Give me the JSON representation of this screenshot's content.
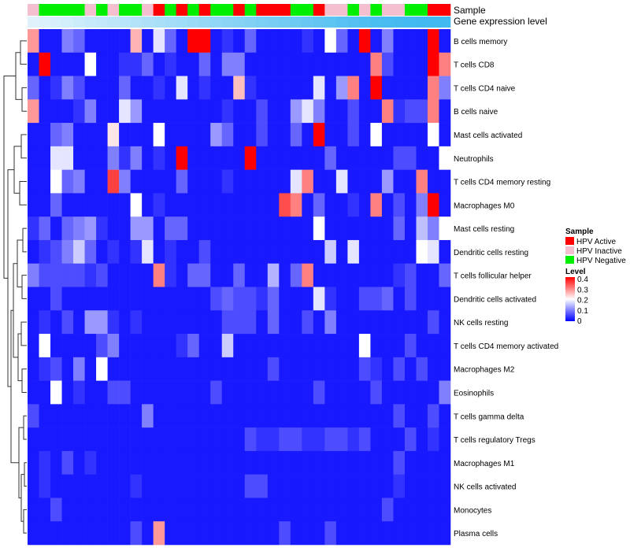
{
  "chart_data": {
    "type": "heatmap",
    "annotation_labels": {
      "sample": "Sample",
      "gene_expression": "Gene expression level"
    },
    "sample_legend": {
      "title": "Sample",
      "entries": [
        {
          "label": "HPV Active",
          "color": "#ff0000"
        },
        {
          "label": "HPV Inactive",
          "color": "#f4bfcf"
        },
        {
          "label": "HPV Negative",
          "color": "#00ee00"
        }
      ]
    },
    "level_legend": {
      "title": "Level",
      "ticks": [
        "0.4",
        "0.3",
        "0.2",
        "0.1",
        "0"
      ],
      "range": [
        0,
        0.4
      ],
      "colors": [
        "#0000ff",
        "#ffffff",
        "#ff0000"
      ]
    },
    "sample_groups": [
      "I",
      "N",
      "N",
      "N",
      "N",
      "I",
      "N",
      "I",
      "N",
      "N",
      "I",
      "A",
      "N",
      "A",
      "N",
      "A",
      "N",
      "N",
      "A",
      "N",
      "A",
      "A",
      "A",
      "N",
      "N",
      "A",
      "I",
      "I",
      "N",
      "I",
      "N",
      "I",
      "I",
      "N",
      "N",
      "A",
      "A"
    ],
    "gene_expression_levels": [
      0.05,
      0.08,
      0.11,
      0.14,
      0.17,
      0.2,
      0.23,
      0.26,
      0.29,
      0.32,
      0.35,
      0.38,
      0.41,
      0.44,
      0.47,
      0.5,
      0.53,
      0.56,
      0.59,
      0.62,
      0.65,
      0.68,
      0.71,
      0.74,
      0.77,
      0.8,
      0.83,
      0.86,
      0.89,
      0.92,
      0.95,
      0.97,
      0.98,
      0.99,
      1.0,
      1.0,
      1.0
    ],
    "rows": [
      "B cells memory",
      "T cells CD8",
      "T cells CD4 naive",
      "B cells naive",
      "Mast cells activated",
      "Neutrophils",
      "T cells CD4 memory resting",
      "Macrophages M0",
      "Mast cells resting",
      "Dendritic cells resting",
      "T cells follicular helper",
      "Dendritic cells activated",
      "NK cells resting",
      "T cells CD4 memory activated",
      "Macrophages M2",
      "Eosinophils",
      "T cells gamma delta",
      "T cells regulatory  Tregs",
      "Macrophages M1",
      "NK cells activated",
      "Monocytes",
      "Plasma cells"
    ],
    "values": [
      [
        0.28,
        0.02,
        0.02,
        0.1,
        0.08,
        0.02,
        0.02,
        0.02,
        0.02,
        0.26,
        0.02,
        0.18,
        0.08,
        0.02,
        0.4,
        0.4,
        0.02,
        0.04,
        0.02,
        0.08,
        0.02,
        0.02,
        0.02,
        0.02,
        0.04,
        0.02,
        0.2,
        0.08,
        0.02,
        0.45,
        0.02,
        0.1,
        0.02,
        0.02,
        0.02,
        0.45,
        0.02
      ],
      [
        0.02,
        0.4,
        0.02,
        0.02,
        0.02,
        0.2,
        0.02,
        0.02,
        0.04,
        0.04,
        0.08,
        0.02,
        0.04,
        0.02,
        0.02,
        0.08,
        0.02,
        0.1,
        0.1,
        0.02,
        0.02,
        0.02,
        0.02,
        0.02,
        0.02,
        0.02,
        0.02,
        0.02,
        0.02,
        0.02,
        0.3,
        0.06,
        0.02,
        0.02,
        0.02,
        0.4,
        0.3
      ],
      [
        0.08,
        0.02,
        0.04,
        0.1,
        0.06,
        0.02,
        0.02,
        0.02,
        0.08,
        0.02,
        0.02,
        0.04,
        0.02,
        0.18,
        0.02,
        0.04,
        0.02,
        0.02,
        0.25,
        0.04,
        0.02,
        0.02,
        0.02,
        0.02,
        0.02,
        0.18,
        0.02,
        0.12,
        0.3,
        0.02,
        0.45,
        0.02,
        0.02,
        0.02,
        0.02,
        0.3,
        0.1
      ],
      [
        0.28,
        0.02,
        0.02,
        0.02,
        0.04,
        0.1,
        0.02,
        0.02,
        0.18,
        0.12,
        0.02,
        0.02,
        0.02,
        0.02,
        0.02,
        0.02,
        0.02,
        0.04,
        0.02,
        0.02,
        0.06,
        0.02,
        0.02,
        0.12,
        0.18,
        0.1,
        0.02,
        0.02,
        0.06,
        0.02,
        0.02,
        0.3,
        0.04,
        0.06,
        0.06,
        0.3,
        0.02
      ],
      [
        0.02,
        0.02,
        0.08,
        0.1,
        0.02,
        0.02,
        0.02,
        0.22,
        0.02,
        0.02,
        0.02,
        0.2,
        0.02,
        0.02,
        0.02,
        0.02,
        0.12,
        0.08,
        0.02,
        0.02,
        0.06,
        0.02,
        0.02,
        0.08,
        0.02,
        0.45,
        0.02,
        0.02,
        0.06,
        0.02,
        0.2,
        0.02,
        0.02,
        0.02,
        0.02,
        0.2,
        0.02
      ],
      [
        0.02,
        0.02,
        0.18,
        0.18,
        0.02,
        0.02,
        0.02,
        0.1,
        0.04,
        0.1,
        0.02,
        0.04,
        0.02,
        0.45,
        0.02,
        0.02,
        0.02,
        0.02,
        0.02,
        0.45,
        0.02,
        0.02,
        0.02,
        0.02,
        0.02,
        0.02,
        0.08,
        0.02,
        0.02,
        0.02,
        0.02,
        0.02,
        0.06,
        0.06,
        0.02,
        0.02,
        0.2
      ],
      [
        0.02,
        0.02,
        0.2,
        0.08,
        0.1,
        0.02,
        0.02,
        0.35,
        0.1,
        0.02,
        0.02,
        0.02,
        0.02,
        0.08,
        0.02,
        0.02,
        0.02,
        0.04,
        0.02,
        0.02,
        0.02,
        0.02,
        0.02,
        0.18,
        0.3,
        0.02,
        0.02,
        0.18,
        0.02,
        0.02,
        0.02,
        0.12,
        0.02,
        0.02,
        0.3,
        0.02,
        0.02
      ],
      [
        0.02,
        0.02,
        0.08,
        0.02,
        0.02,
        0.02,
        0.02,
        0.02,
        0.02,
        0.2,
        0.02,
        0.04,
        0.02,
        0.02,
        0.02,
        0.02,
        0.02,
        0.02,
        0.02,
        0.02,
        0.02,
        0.02,
        0.34,
        0.3,
        0.02,
        0.08,
        0.02,
        0.02,
        0.04,
        0.02,
        0.3,
        0.02,
        0.06,
        0.02,
        0.1,
        0.4,
        0.02
      ],
      [
        0.04,
        0.08,
        0.02,
        0.08,
        0.1,
        0.12,
        0.04,
        0.02,
        0.02,
        0.12,
        0.12,
        0.02,
        0.08,
        0.08,
        0.02,
        0.02,
        0.02,
        0.02,
        0.02,
        0.02,
        0.02,
        0.02,
        0.02,
        0.02,
        0.02,
        0.2,
        0.02,
        0.02,
        0.02,
        0.02,
        0.02,
        0.02,
        0.08,
        0.02,
        0.15,
        0.1,
        0.2
      ],
      [
        0.02,
        0.04,
        0.06,
        0.1,
        0.16,
        0.08,
        0.02,
        0.04,
        0.02,
        0.04,
        0.18,
        0.02,
        0.04,
        0.02,
        0.02,
        0.06,
        0.02,
        0.02,
        0.02,
        0.02,
        0.02,
        0.02,
        0.02,
        0.02,
        0.02,
        0.02,
        0.16,
        0.02,
        0.18,
        0.02,
        0.02,
        0.02,
        0.02,
        0.02,
        0.2,
        0.18,
        0.02
      ],
      [
        0.1,
        0.06,
        0.06,
        0.06,
        0.06,
        0.04,
        0.06,
        0.02,
        0.02,
        0.02,
        0.02,
        0.3,
        0.04,
        0.02,
        0.08,
        0.08,
        0.02,
        0.02,
        0.08,
        0.02,
        0.02,
        0.14,
        0.02,
        0.08,
        0.3,
        0.02,
        0.02,
        0.02,
        0.02,
        0.02,
        0.02,
        0.02,
        0.04,
        0.06,
        0.02,
        0.02,
        0.08
      ],
      [
        0.02,
        0.02,
        0.06,
        0.02,
        0.02,
        0.02,
        0.02,
        0.02,
        0.02,
        0.02,
        0.02,
        0.02,
        0.02,
        0.02,
        0.02,
        0.02,
        0.06,
        0.08,
        0.06,
        0.06,
        0.04,
        0.08,
        0.02,
        0.02,
        0.02,
        0.18,
        0.04,
        0.02,
        0.02,
        0.06,
        0.06,
        0.08,
        0.02,
        0.06,
        0.02,
        0.02,
        0.02
      ],
      [
        0.02,
        0.04,
        0.02,
        0.06,
        0.02,
        0.12,
        0.12,
        0.04,
        0.02,
        0.04,
        0.02,
        0.02,
        0.02,
        0.02,
        0.02,
        0.02,
        0.02,
        0.06,
        0.06,
        0.06,
        0.02,
        0.08,
        0.02,
        0.02,
        0.06,
        0.02,
        0.1,
        0.02,
        0.02,
        0.02,
        0.02,
        0.02,
        0.02,
        0.02,
        0.02,
        0.06,
        0.02
      ],
      [
        0.02,
        0.2,
        0.02,
        0.02,
        0.02,
        0.02,
        0.06,
        0.1,
        0.02,
        0.02,
        0.02,
        0.02,
        0.02,
        0.04,
        0.08,
        0.02,
        0.02,
        0.16,
        0.02,
        0.02,
        0.02,
        0.02,
        0.02,
        0.02,
        0.02,
        0.02,
        0.02,
        0.02,
        0.02,
        0.2,
        0.02,
        0.02,
        0.02,
        0.06,
        0.02,
        0.02,
        0.02
      ],
      [
        0.02,
        0.04,
        0.06,
        0.02,
        0.1,
        0.02,
        0.2,
        0.02,
        0.02,
        0.02,
        0.02,
        0.02,
        0.02,
        0.02,
        0.02,
        0.02,
        0.02,
        0.02,
        0.02,
        0.02,
        0.02,
        0.06,
        0.02,
        0.02,
        0.02,
        0.02,
        0.02,
        0.02,
        0.02,
        0.06,
        0.04,
        0.02,
        0.06,
        0.02,
        0.06,
        0.02,
        0.02
      ],
      [
        0.02,
        0.02,
        0.2,
        0.02,
        0.04,
        0.02,
        0.02,
        0.06,
        0.06,
        0.02,
        0.02,
        0.02,
        0.02,
        0.02,
        0.02,
        0.02,
        0.06,
        0.02,
        0.02,
        0.02,
        0.02,
        0.02,
        0.02,
        0.02,
        0.02,
        0.06,
        0.02,
        0.02,
        0.02,
        0.02,
        0.06,
        0.02,
        0.02,
        0.02,
        0.02,
        0.02,
        0.1
      ],
      [
        0.06,
        0.02,
        0.02,
        0.02,
        0.02,
        0.02,
        0.02,
        0.02,
        0.02,
        0.02,
        0.1,
        0.02,
        0.02,
        0.02,
        0.02,
        0.02,
        0.02,
        0.02,
        0.02,
        0.02,
        0.02,
        0.02,
        0.02,
        0.02,
        0.02,
        0.02,
        0.02,
        0.02,
        0.02,
        0.02,
        0.02,
        0.02,
        0.06,
        0.02,
        0.02,
        0.06,
        0.02
      ],
      [
        0.02,
        0.02,
        0.02,
        0.02,
        0.02,
        0.02,
        0.02,
        0.02,
        0.02,
        0.02,
        0.02,
        0.02,
        0.02,
        0.02,
        0.02,
        0.02,
        0.02,
        0.02,
        0.02,
        0.06,
        0.04,
        0.04,
        0.06,
        0.06,
        0.04,
        0.04,
        0.06,
        0.06,
        0.04,
        0.06,
        0.02,
        0.02,
        0.02,
        0.06,
        0.02,
        0.04,
        0.02
      ],
      [
        0.02,
        0.04,
        0.02,
        0.06,
        0.02,
        0.04,
        0.02,
        0.02,
        0.02,
        0.02,
        0.02,
        0.02,
        0.02,
        0.02,
        0.02,
        0.02,
        0.02,
        0.02,
        0.02,
        0.02,
        0.02,
        0.02,
        0.02,
        0.02,
        0.02,
        0.02,
        0.02,
        0.02,
        0.02,
        0.02,
        0.02,
        0.02,
        0.06,
        0.02,
        0.02,
        0.02,
        0.02
      ],
      [
        0.02,
        0.04,
        0.02,
        0.02,
        0.02,
        0.02,
        0.02,
        0.02,
        0.02,
        0.04,
        0.02,
        0.02,
        0.02,
        0.02,
        0.02,
        0.02,
        0.02,
        0.02,
        0.02,
        0.06,
        0.06,
        0.02,
        0.02,
        0.02,
        0.02,
        0.02,
        0.02,
        0.02,
        0.02,
        0.02,
        0.02,
        0.02,
        0.04,
        0.02,
        0.02,
        0.02,
        0.02
      ],
      [
        0.02,
        0.02,
        0.06,
        0.02,
        0.02,
        0.02,
        0.02,
        0.02,
        0.02,
        0.02,
        0.02,
        0.02,
        0.02,
        0.02,
        0.02,
        0.02,
        0.02,
        0.02,
        0.02,
        0.02,
        0.02,
        0.02,
        0.02,
        0.02,
        0.02,
        0.02,
        0.02,
        0.02,
        0.02,
        0.02,
        0.02,
        0.06,
        0.02,
        0.02,
        0.02,
        0.02,
        0.02
      ],
      [
        0.02,
        0.02,
        0.02,
        0.02,
        0.02,
        0.02,
        0.02,
        0.02,
        0.02,
        0.06,
        0.02,
        0.28,
        0.02,
        0.02,
        0.02,
        0.02,
        0.02,
        0.02,
        0.02,
        0.02,
        0.02,
        0.02,
        0.06,
        0.02,
        0.02,
        0.02,
        0.06,
        0.02,
        0.02,
        0.02,
        0.02,
        0.02,
        0.02,
        0.02,
        0.02,
        0.02,
        0.02
      ]
    ]
  }
}
